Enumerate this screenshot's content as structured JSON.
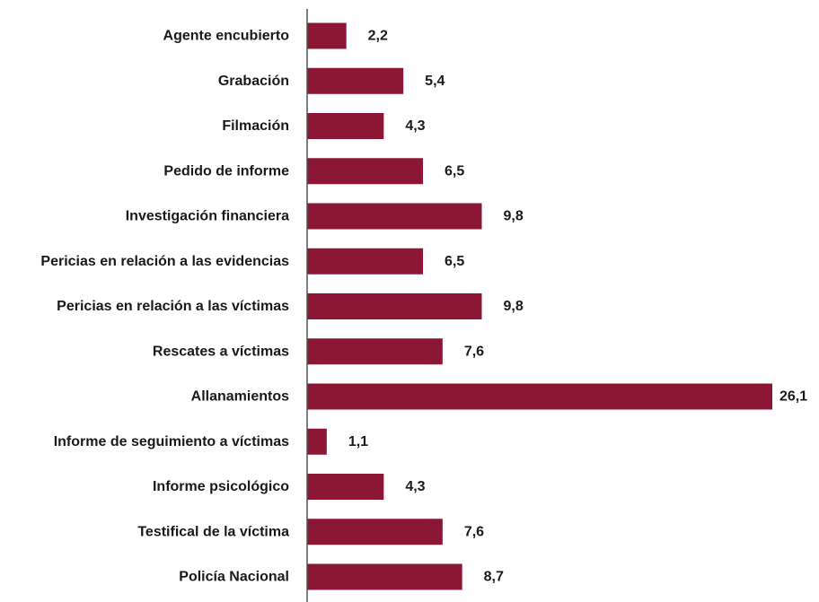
{
  "chart_data": {
    "type": "bar",
    "orientation": "horizontal",
    "categories": [
      "Agente encubierto",
      "Grabación",
      "Filmación",
      "Pedido de informe",
      "Investigación financiera",
      "Pericias en relación a las evidencias",
      "Pericias en relación a las víctimas",
      "Rescates a víctimas",
      "Allanamientos",
      "Informe de seguimiento a víctimas",
      "Informe psicológico",
      "Testifical de la víctima",
      "Policía Nacional"
    ],
    "values": [
      2.2,
      5.4,
      4.3,
      6.5,
      9.8,
      6.5,
      9.8,
      7.6,
      26.1,
      1.1,
      4.3,
      7.6,
      8.7
    ],
    "value_labels": [
      "2,2",
      "5,4",
      "4,3",
      "6,5",
      "9,8",
      "6,5",
      "9,8",
      "7,6",
      "26,1",
      "1,1",
      "4,3",
      "7,6",
      "8,7"
    ],
    "bar_color": "#8b1734",
    "axis_color": "#555555",
    "grid": false,
    "legend": "none"
  }
}
